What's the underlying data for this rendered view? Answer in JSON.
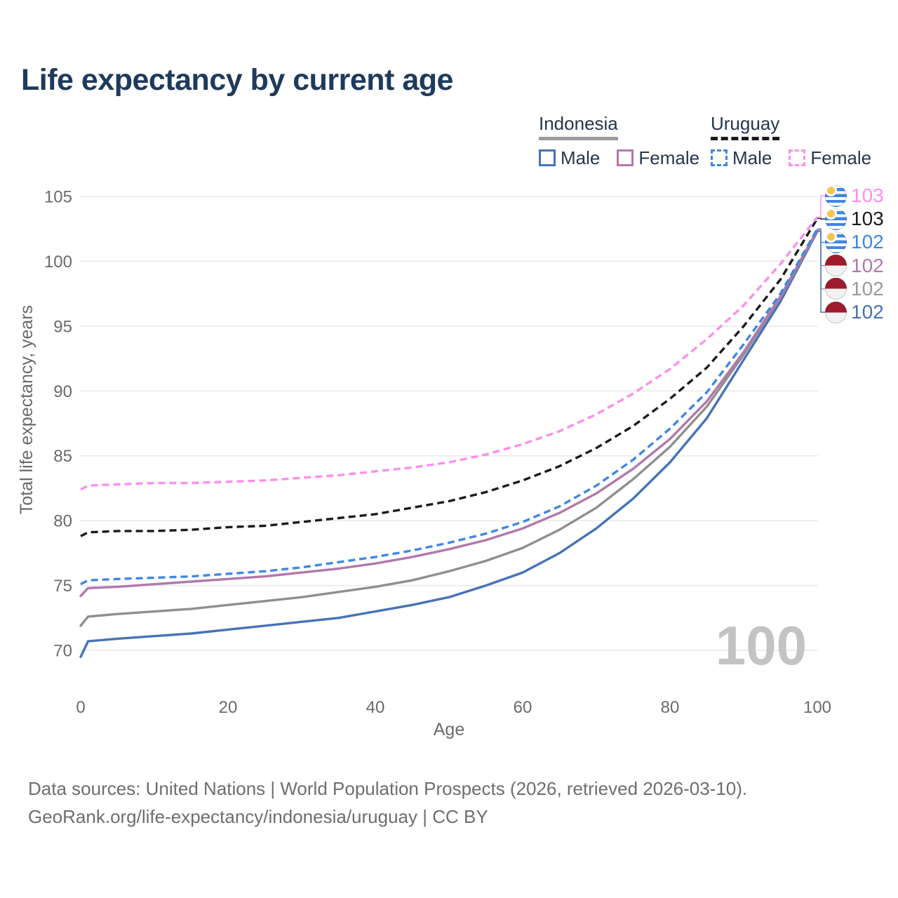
{
  "title": "Life expectancy by current age",
  "legend": {
    "groups": [
      {
        "label": "Indonesia",
        "line_style": "solid",
        "underline_color": "#9b9b9b",
        "items": [
          {
            "label": "Male",
            "color": "#4673b8",
            "dash": false
          },
          {
            "label": "Female",
            "color": "#b278ab",
            "dash": false
          }
        ]
      },
      {
        "label": "Uruguay",
        "line_style": "dashed",
        "underline_color": "#1a1a1a",
        "items": [
          {
            "label": "Male",
            "color": "#3f87e5",
            "dash": true
          },
          {
            "label": "Female",
            "color": "#fc8fec",
            "dash": true
          }
        ]
      }
    ]
  },
  "chart_data": {
    "type": "line",
    "title": "Life expectancy by current age",
    "xlabel": "Age",
    "ylabel": "Total life expectancy, years",
    "xlim": [
      0,
      100
    ],
    "ylim": [
      70,
      105
    ],
    "xticks": [
      0,
      20,
      40,
      60,
      80,
      100
    ],
    "yticks": [
      70,
      75,
      80,
      85,
      90,
      95,
      100,
      105
    ],
    "grid": "horizontal",
    "x": [
      0,
      1,
      5,
      10,
      15,
      20,
      25,
      30,
      35,
      40,
      45,
      50,
      55,
      60,
      65,
      70,
      75,
      80,
      85,
      90,
      95,
      100
    ],
    "series": [
      {
        "id": "uruguay-female",
        "name": "Uruguay Female",
        "color": "#fc8fec",
        "dash": true,
        "values": [
          82.4,
          82.7,
          82.8,
          82.9,
          82.9,
          83.0,
          83.1,
          83.3,
          83.5,
          83.8,
          84.1,
          84.5,
          85.1,
          85.9,
          86.9,
          88.2,
          89.8,
          91.7,
          94.0,
          96.6,
          99.8,
          103.4
        ]
      },
      {
        "id": "uruguay-both-sexes",
        "name": "Uruguay",
        "color": "#1a1a1a",
        "dash": true,
        "values": [
          78.8,
          79.1,
          79.2,
          79.2,
          79.3,
          79.5,
          79.6,
          79.9,
          80.2,
          80.5,
          81.0,
          81.5,
          82.2,
          83.1,
          84.2,
          85.6,
          87.3,
          89.4,
          91.8,
          95.0,
          98.6,
          103.3
        ]
      },
      {
        "id": "uruguay-male",
        "name": "Uruguay Male",
        "color": "#3f87e5",
        "dash": true,
        "values": [
          75.1,
          75.4,
          75.5,
          75.6,
          75.7,
          75.9,
          76.1,
          76.4,
          76.8,
          77.2,
          77.7,
          78.3,
          79.0,
          79.9,
          81.1,
          82.7,
          84.7,
          87.1,
          89.9,
          93.6,
          97.5,
          102.5
        ]
      },
      {
        "id": "indonesia-female",
        "name": "Indonesia Female",
        "color": "#b278ab",
        "dash": false,
        "values": [
          74.2,
          74.8,
          74.9,
          75.1,
          75.3,
          75.5,
          75.7,
          76.0,
          76.3,
          76.7,
          77.2,
          77.8,
          78.5,
          79.4,
          80.6,
          82.1,
          84.0,
          86.3,
          89.2,
          93.0,
          97.3,
          102.4
        ]
      },
      {
        "id": "indonesia-both-sexes",
        "name": "Indonesia",
        "color": "#8f8f8f",
        "dash": false,
        "values": [
          71.9,
          72.6,
          72.8,
          73.0,
          73.2,
          73.5,
          73.8,
          74.1,
          74.5,
          74.9,
          75.4,
          76.1,
          76.9,
          77.9,
          79.3,
          81.0,
          83.2,
          85.7,
          88.8,
          92.8,
          97.2,
          102.35
        ]
      },
      {
        "id": "indonesia-male",
        "name": "Indonesia Male",
        "color": "#4673b8",
        "dash": false,
        "values": [
          69.5,
          70.7,
          70.9,
          71.1,
          71.3,
          71.6,
          71.9,
          72.2,
          72.5,
          73.0,
          73.5,
          74.1,
          75.0,
          76.0,
          77.5,
          79.4,
          81.7,
          84.5,
          87.9,
          92.4,
          96.9,
          102.3
        ]
      }
    ]
  },
  "end_labels": [
    {
      "flag": "uruguay",
      "value": "103",
      "color": "#fc8fec"
    },
    {
      "flag": "uruguay",
      "value": "103",
      "color": "#1a1a1a"
    },
    {
      "flag": "uruguay",
      "value": "102",
      "color": "#3f87e5"
    },
    {
      "flag": "indonesia",
      "value": "102",
      "color": "#b278ab"
    },
    {
      "flag": "indonesia",
      "value": "102",
      "color": "#9a9a9a"
    },
    {
      "flag": "indonesia",
      "value": "102",
      "color": "#4673b8"
    }
  ],
  "watermark": "100",
  "footer": {
    "line1": "Data sources: United Nations | World Population Prospects (2026, retrieved 2026-03-10).",
    "line2": "GeoRank.org/life-expectancy/indonesia/uruguay | CC BY"
  }
}
